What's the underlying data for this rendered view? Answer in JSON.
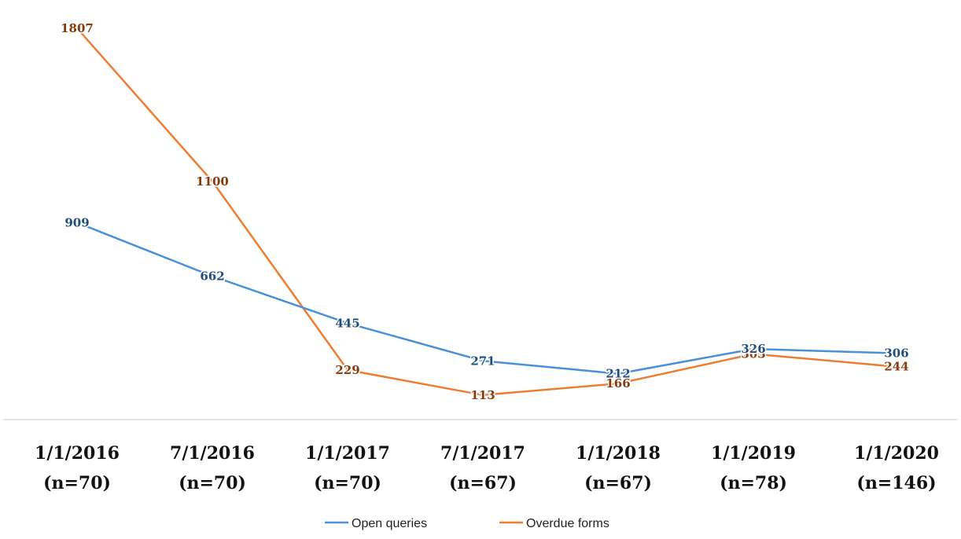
{
  "chart_data": {
    "type": "line",
    "categories": [
      {
        "date": "1/1/2016",
        "n": "(n=70)"
      },
      {
        "date": "7/1/2016",
        "n": "(n=70)"
      },
      {
        "date": "1/1/2017",
        "n": "(n=70)"
      },
      {
        "date": "7/1/2017",
        "n": "(n=67)"
      },
      {
        "date": "1/1/2018",
        "n": "(n=67)"
      },
      {
        "date": "1/1/2019",
        "n": "(n=78)"
      },
      {
        "date": "1/1/2020",
        "n": "(n=146)"
      }
    ],
    "x_dates": [
      "2016-01-01",
      "2016-07-01",
      "2017-01-01",
      "2017-07-01",
      "2018-01-01",
      "2019-01-01",
      "2020-01-01"
    ],
    "series": [
      {
        "name": "Open queries",
        "color": "#4a90d9",
        "label_color": "#1f4e79",
        "values": [
          909,
          662,
          445,
          271,
          212,
          326,
          306
        ]
      },
      {
        "name": "Overdue forms",
        "color": "#ed7d31",
        "label_color": "#843c0c",
        "values": [
          1807,
          1100,
          229,
          113,
          166,
          303,
          244
        ]
      }
    ],
    "title": "",
    "xlabel": "",
    "ylabel": "",
    "ylim": [
      0,
      1850
    ],
    "grid": false,
    "legend": "bottom"
  }
}
